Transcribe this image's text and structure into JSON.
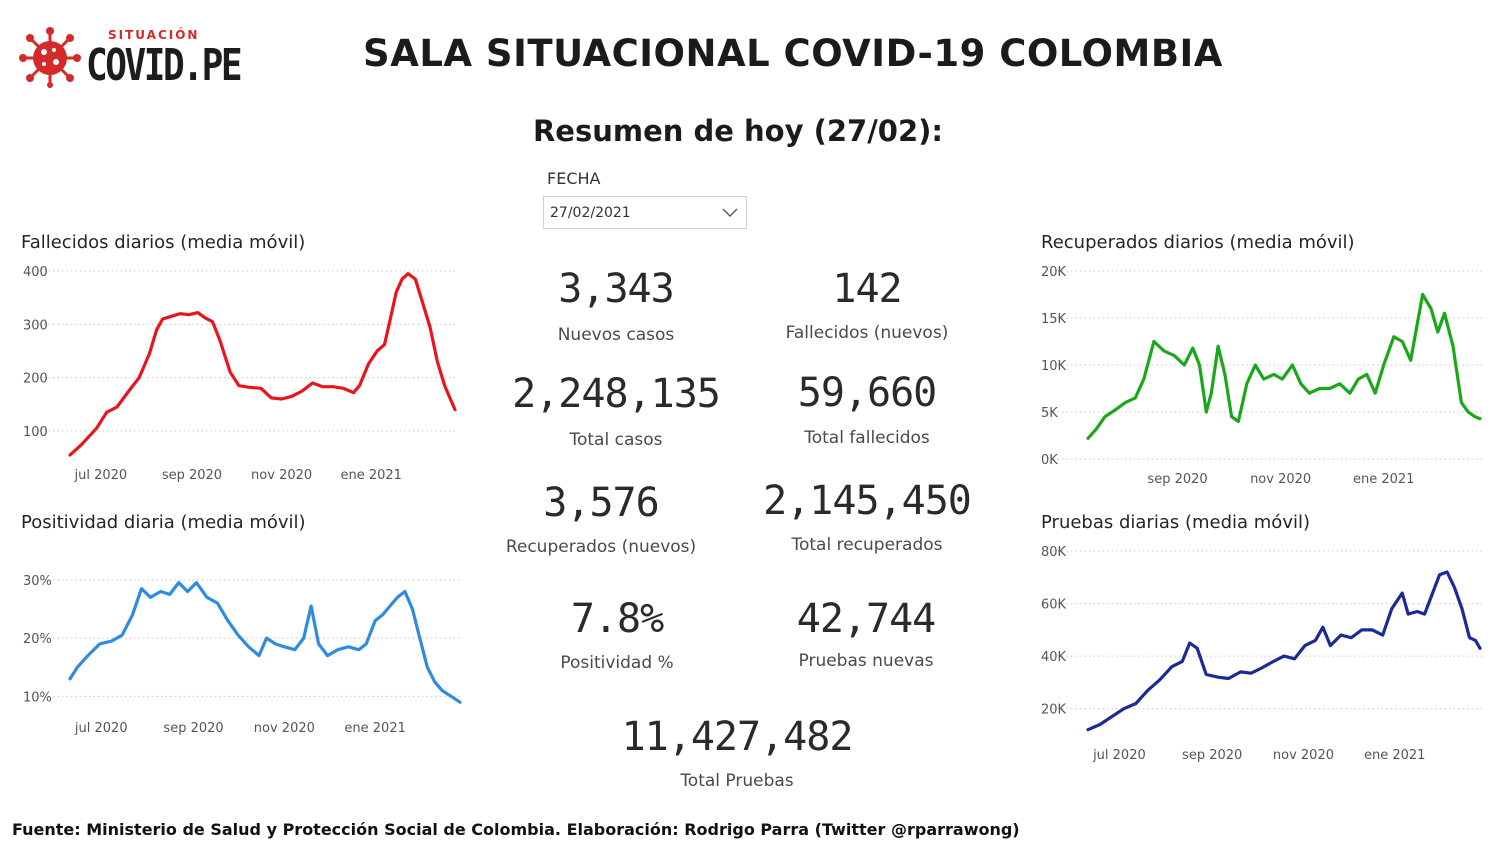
{
  "logo": {
    "small_text": "SITUACIÓN",
    "big_text": "COVID.PE",
    "icon": "virus-icon",
    "color": "#d42a2a"
  },
  "title": "SALA SITUACIONAL COVID-19 COLOMBIA",
  "summary_title": "Resumen de hoy (27/02):",
  "date_filter": {
    "label": "FECHA",
    "value": "27/02/2021",
    "icon": "chevron-down-icon"
  },
  "kpis": {
    "nuevos_casos": {
      "value": "3,343",
      "label": "Nuevos casos"
    },
    "fallecidos_nuevos": {
      "value": "142",
      "label": "Fallecidos (nuevos)"
    },
    "total_casos": {
      "value": "2,248,135",
      "label": "Total casos"
    },
    "total_fallecidos": {
      "value": "59,660",
      "label": "Total fallecidos"
    },
    "recuperados_nuevos": {
      "value": "3,576",
      "label": "Recuperados (nuevos)"
    },
    "total_recuperados": {
      "value": "2,145,450",
      "label": "Total recuperados"
    },
    "positividad": {
      "value": "7.8%",
      "label": "Positividad %"
    },
    "pruebas_nuevas": {
      "value": "42,744",
      "label": "Pruebas nuevas"
    },
    "total_pruebas": {
      "value": "11,427,482",
      "label": "Total Pruebas"
    }
  },
  "footer": "Fuente: Ministerio de Salud y Protección Social de Colombia. Elaboración: Rodrigo Parra (Twitter @rparrawong)",
  "chart_data": [
    {
      "id": "fallecidos",
      "type": "line",
      "title": "Fallecidos diarios (media móvil)",
      "color": "#e8151b",
      "x_start": "2020-06-10",
      "x_end": "2021-02-27",
      "ylim": [
        55,
        400
      ],
      "yticks": [
        {
          "v": 100,
          "l": "100"
        },
        {
          "v": 200,
          "l": "200"
        },
        {
          "v": 300,
          "l": "300"
        },
        {
          "v": 400,
          "l": "400"
        }
      ],
      "xticks": [
        {
          "d": "2020-07-01",
          "l": "jul 2020"
        },
        {
          "d": "2020-09-01",
          "l": "sep 2020"
        },
        {
          "d": "2020-11-01",
          "l": "nov 2020"
        },
        {
          "d": "2021-01-01",
          "l": "ene 2021"
        }
      ],
      "grid": true,
      "points": [
        [
          "2020-06-10",
          55
        ],
        [
          "2020-06-18",
          75
        ],
        [
          "2020-06-28",
          105
        ],
        [
          "2020-07-05",
          135
        ],
        [
          "2020-07-12",
          145
        ],
        [
          "2020-07-20",
          175
        ],
        [
          "2020-07-27",
          200
        ],
        [
          "2020-08-03",
          245
        ],
        [
          "2020-08-08",
          290
        ],
        [
          "2020-08-12",
          310
        ],
        [
          "2020-08-18",
          315
        ],
        [
          "2020-08-24",
          320
        ],
        [
          "2020-08-30",
          318
        ],
        [
          "2020-09-05",
          322
        ],
        [
          "2020-09-10",
          312
        ],
        [
          "2020-09-15",
          305
        ],
        [
          "2020-09-20",
          270
        ],
        [
          "2020-09-27",
          210
        ],
        [
          "2020-10-03",
          185
        ],
        [
          "2020-10-10",
          182
        ],
        [
          "2020-10-18",
          180
        ],
        [
          "2020-10-25",
          162
        ],
        [
          "2020-11-01",
          160
        ],
        [
          "2020-11-08",
          165
        ],
        [
          "2020-11-15",
          175
        ],
        [
          "2020-11-22",
          190
        ],
        [
          "2020-11-29",
          183
        ],
        [
          "2020-12-06",
          183
        ],
        [
          "2020-12-13",
          180
        ],
        [
          "2020-12-20",
          172
        ],
        [
          "2020-12-24",
          185
        ],
        [
          "2020-12-30",
          225
        ],
        [
          "2021-01-05",
          250
        ],
        [
          "2021-01-10",
          262
        ],
        [
          "2021-01-14",
          310
        ],
        [
          "2021-01-18",
          360
        ],
        [
          "2021-01-22",
          385
        ],
        [
          "2021-01-26",
          395
        ],
        [
          "2021-01-31",
          385
        ],
        [
          "2021-02-05",
          340
        ],
        [
          "2021-02-10",
          295
        ],
        [
          "2021-02-15",
          230
        ],
        [
          "2021-02-20",
          185
        ],
        [
          "2021-02-27",
          140
        ]
      ]
    },
    {
      "id": "positividad",
      "type": "line",
      "title": "Positividad diaria (media móvil)",
      "color": "#2e8be0",
      "x_start": "2020-06-10",
      "x_end": "2021-02-27",
      "ylim": [
        8,
        31
      ],
      "yticks": [
        {
          "v": 10,
          "l": "10%"
        },
        {
          "v": 20,
          "l": "20%"
        },
        {
          "v": 30,
          "l": "30%"
        }
      ],
      "xticks": [
        {
          "d": "2020-07-01",
          "l": "jul 2020"
        },
        {
          "d": "2020-09-01",
          "l": "sep 2020"
        },
        {
          "d": "2020-11-01",
          "l": "nov 2020"
        },
        {
          "d": "2021-01-01",
          "l": "ene 2021"
        }
      ],
      "grid": true,
      "points": [
        [
          "2020-06-10",
          13
        ],
        [
          "2020-06-15",
          15
        ],
        [
          "2020-06-22",
          17
        ],
        [
          "2020-06-30",
          19
        ],
        [
          "2020-07-08",
          19.5
        ],
        [
          "2020-07-15",
          20.5
        ],
        [
          "2020-07-22",
          24
        ],
        [
          "2020-07-28",
          28.5
        ],
        [
          "2020-08-03",
          27
        ],
        [
          "2020-08-10",
          28
        ],
        [
          "2020-08-16",
          27.5
        ],
        [
          "2020-08-22",
          29.5
        ],
        [
          "2020-08-28",
          28
        ],
        [
          "2020-09-03",
          29.5
        ],
        [
          "2020-09-10",
          27
        ],
        [
          "2020-09-17",
          26
        ],
        [
          "2020-09-24",
          23
        ],
        [
          "2020-10-01",
          20.5
        ],
        [
          "2020-10-08",
          18.5
        ],
        [
          "2020-10-15",
          17
        ],
        [
          "2020-10-20",
          20
        ],
        [
          "2020-10-26",
          19
        ],
        [
          "2020-11-01",
          18.5
        ],
        [
          "2020-11-08",
          18
        ],
        [
          "2020-11-14",
          20
        ],
        [
          "2020-11-19",
          25.5
        ],
        [
          "2020-11-24",
          19
        ],
        [
          "2020-11-30",
          17
        ],
        [
          "2020-12-07",
          18
        ],
        [
          "2020-12-14",
          18.5
        ],
        [
          "2020-12-21",
          18
        ],
        [
          "2020-12-26",
          19
        ],
        [
          "2021-01-01",
          23
        ],
        [
          "2021-01-06",
          24
        ],
        [
          "2021-01-11",
          25.5
        ],
        [
          "2021-01-16",
          27
        ],
        [
          "2021-01-21",
          28
        ],
        [
          "2021-01-26",
          25
        ],
        [
          "2021-01-31",
          20
        ],
        [
          "2021-02-05",
          15
        ],
        [
          "2021-02-10",
          12.5
        ],
        [
          "2021-02-15",
          11
        ],
        [
          "2021-02-21",
          10
        ],
        [
          "2021-02-27",
          9
        ]
      ]
    },
    {
      "id": "recuperados",
      "type": "line",
      "title": "Recuperados diarios (media móvil)",
      "color": "#1aa81a",
      "x_start": "2020-07-10",
      "x_end": "2021-02-27",
      "ylim": [
        0,
        20000
      ],
      "yticks": [
        {
          "v": 0,
          "l": "0K"
        },
        {
          "v": 5000,
          "l": "5K"
        },
        {
          "v": 10000,
          "l": "10K"
        },
        {
          "v": 15000,
          "l": "15K"
        },
        {
          "v": 20000,
          "l": "20K"
        }
      ],
      "xticks": [
        {
          "d": "2020-09-01",
          "l": "sep 2020"
        },
        {
          "d": "2020-11-01",
          "l": "nov 2020"
        },
        {
          "d": "2021-01-01",
          "l": "ene 2021"
        }
      ],
      "grid": true,
      "points": [
        [
          "2020-07-10",
          2200
        ],
        [
          "2020-07-15",
          3200
        ],
        [
          "2020-07-20",
          4500
        ],
        [
          "2020-07-26",
          5200
        ],
        [
          "2020-08-01",
          6000
        ],
        [
          "2020-08-07",
          6500
        ],
        [
          "2020-08-12",
          8500
        ],
        [
          "2020-08-18",
          12500
        ],
        [
          "2020-08-24",
          11500
        ],
        [
          "2020-08-30",
          11000
        ],
        [
          "2020-09-05",
          10000
        ],
        [
          "2020-09-10",
          11800
        ],
        [
          "2020-09-14",
          10000
        ],
        [
          "2020-09-18",
          5000
        ],
        [
          "2020-09-21",
          7000
        ],
        [
          "2020-09-25",
          12000
        ],
        [
          "2020-09-29",
          9000
        ],
        [
          "2020-10-03",
          4500
        ],
        [
          "2020-10-07",
          4000
        ],
        [
          "2020-10-12",
          8000
        ],
        [
          "2020-10-17",
          10000
        ],
        [
          "2020-10-22",
          8500
        ],
        [
          "2020-10-28",
          9000
        ],
        [
          "2020-11-02",
          8500
        ],
        [
          "2020-11-08",
          10000
        ],
        [
          "2020-11-13",
          8000
        ],
        [
          "2020-11-18",
          7000
        ],
        [
          "2020-11-24",
          7500
        ],
        [
          "2020-11-30",
          7500
        ],
        [
          "2020-12-06",
          8000
        ],
        [
          "2020-12-12",
          7000
        ],
        [
          "2020-12-17",
          8500
        ],
        [
          "2020-12-22",
          9000
        ],
        [
          "2020-12-27",
          7000
        ],
        [
          "2021-01-01",
          10000
        ],
        [
          "2021-01-07",
          13000
        ],
        [
          "2021-01-12",
          12500
        ],
        [
          "2021-01-17",
          10500
        ],
        [
          "2021-01-21",
          14500
        ],
        [
          "2021-01-24",
          17500
        ],
        [
          "2021-01-29",
          16000
        ],
        [
          "2021-02-02",
          13500
        ],
        [
          "2021-02-06",
          15500
        ],
        [
          "2021-02-11",
          12000
        ],
        [
          "2021-02-16",
          6000
        ],
        [
          "2021-02-20",
          5000
        ],
        [
          "2021-02-24",
          4500
        ],
        [
          "2021-02-27",
          4300
        ]
      ]
    },
    {
      "id": "pruebas",
      "type": "line",
      "title": "Pruebas diarias (media móvil)",
      "color": "#1a2a96",
      "x_start": "2020-06-10",
      "x_end": "2021-02-27",
      "ylim": [
        10000,
        80000
      ],
      "yticks": [
        {
          "v": 20000,
          "l": "20K"
        },
        {
          "v": 40000,
          "l": "40K"
        },
        {
          "v": 60000,
          "l": "60K"
        },
        {
          "v": 80000,
          "l": "80K"
        }
      ],
      "xticks": [
        {
          "d": "2020-07-01",
          "l": "jul 2020"
        },
        {
          "d": "2020-09-01",
          "l": "sep 2020"
        },
        {
          "d": "2020-11-01",
          "l": "nov 2020"
        },
        {
          "d": "2021-01-01",
          "l": "ene 2021"
        }
      ],
      "grid": true,
      "points": [
        [
          "2020-06-10",
          12000
        ],
        [
          "2020-06-18",
          14000
        ],
        [
          "2020-06-26",
          17000
        ],
        [
          "2020-07-04",
          20000
        ],
        [
          "2020-07-12",
          22000
        ],
        [
          "2020-07-20",
          27000
        ],
        [
          "2020-07-28",
          31000
        ],
        [
          "2020-08-05",
          36000
        ],
        [
          "2020-08-12",
          38000
        ],
        [
          "2020-08-17",
          45000
        ],
        [
          "2020-08-22",
          43000
        ],
        [
          "2020-08-28",
          33000
        ],
        [
          "2020-09-05",
          32000
        ],
        [
          "2020-09-12",
          31500
        ],
        [
          "2020-09-20",
          34000
        ],
        [
          "2020-09-27",
          33500
        ],
        [
          "2020-10-04",
          35500
        ],
        [
          "2020-10-12",
          38000
        ],
        [
          "2020-10-19",
          40000
        ],
        [
          "2020-10-26",
          39000
        ],
        [
          "2020-11-02",
          44000
        ],
        [
          "2020-11-09",
          46000
        ],
        [
          "2020-11-14",
          51000
        ],
        [
          "2020-11-19",
          44000
        ],
        [
          "2020-11-26",
          48000
        ],
        [
          "2020-12-03",
          47000
        ],
        [
          "2020-12-10",
          50000
        ],
        [
          "2020-12-17",
          50000
        ],
        [
          "2020-12-24",
          48000
        ],
        [
          "2020-12-30",
          58000
        ],
        [
          "2021-01-06",
          64000
        ],
        [
          "2021-01-10",
          56000
        ],
        [
          "2021-01-16",
          57000
        ],
        [
          "2021-01-21",
          56000
        ],
        [
          "2021-01-27",
          65000
        ],
        [
          "2021-01-31",
          71000
        ],
        [
          "2021-02-05",
          72000
        ],
        [
          "2021-02-10",
          66000
        ],
        [
          "2021-02-15",
          58000
        ],
        [
          "2021-02-20",
          47000
        ],
        [
          "2021-02-24",
          46000
        ],
        [
          "2021-02-27",
          43000
        ]
      ]
    }
  ]
}
